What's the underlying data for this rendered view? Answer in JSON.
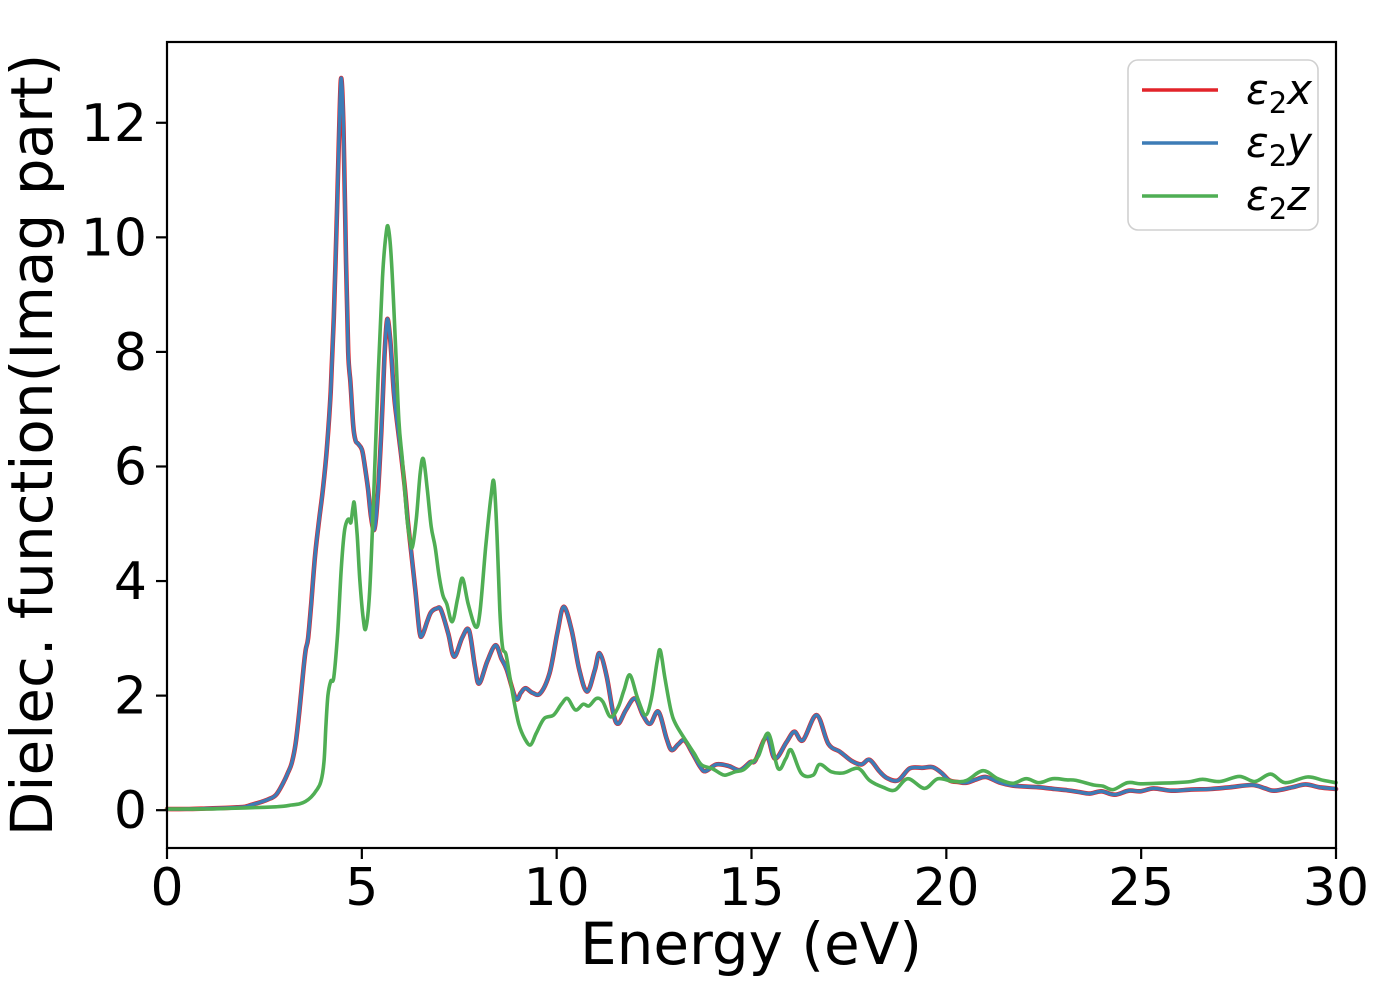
{
  "chart_data": {
    "type": "line",
    "title": "",
    "xlabel": "Energy (eV)",
    "ylabel": "Dielec. function(Imag part)",
    "xlim": [
      0,
      30
    ],
    "ylim": [
      -0.66,
      13.41
    ],
    "x_ticks": [
      "0",
      "5",
      "10",
      "15",
      "20",
      "25",
      "30"
    ],
    "x_tick_values": [
      0,
      5,
      10,
      15,
      20,
      25,
      30
    ],
    "y_ticks": [
      "0",
      "2",
      "4",
      "6",
      "8",
      "10",
      "12"
    ],
    "y_tick_values": [
      0,
      2,
      4,
      6,
      8,
      10,
      12
    ],
    "grid": false,
    "background": "#ffffff",
    "axis_color": "#000000",
    "legend_position": "upper right",
    "legend": {
      "entries": [
        {
          "series": "e2x",
          "symbol": "ε",
          "sub": "2",
          "var": "x"
        },
        {
          "series": "e2y",
          "symbol": "ε",
          "sub": "2",
          "var": "y"
        },
        {
          "series": "e2z",
          "symbol": "ε",
          "sub": "2",
          "var": "z"
        }
      ]
    },
    "series": [
      {
        "name": "e2x",
        "color": "#e2242a",
        "points": "ref:e2y"
      },
      {
        "name": "e2y",
        "color": "#3d7cb6",
        "points": [
          [
            0,
            0.02
          ],
          [
            0.5,
            0.02
          ],
          [
            1,
            0.03
          ],
          [
            1.5,
            0.04
          ],
          [
            1.8,
            0.05
          ],
          [
            2,
            0.06
          ],
          [
            2.2,
            0.1
          ],
          [
            2.4,
            0.14
          ],
          [
            2.6,
            0.19
          ],
          [
            2.8,
            0.27
          ],
          [
            3,
            0.5
          ],
          [
            3.1,
            0.65
          ],
          [
            3.2,
            0.82
          ],
          [
            3.3,
            1.16
          ],
          [
            3.4,
            1.75
          ],
          [
            3.5,
            2.45
          ],
          [
            3.56,
            2.8
          ],
          [
            3.62,
            3
          ],
          [
            3.7,
            3.6
          ],
          [
            3.8,
            4.45
          ],
          [
            3.9,
            5.05
          ],
          [
            4,
            5.6
          ],
          [
            4.1,
            6.3
          ],
          [
            4.2,
            7.3
          ],
          [
            4.28,
            8.6
          ],
          [
            4.36,
            10.4
          ],
          [
            4.42,
            11.9
          ],
          [
            4.47,
            12.78
          ],
          [
            4.53,
            11.9
          ],
          [
            4.59,
            9.7
          ],
          [
            4.65,
            8
          ],
          [
            4.71,
            7.45
          ],
          [
            4.78,
            6.7
          ],
          [
            4.84,
            6.45
          ],
          [
            4.9,
            6.4
          ],
          [
            5,
            6.3
          ],
          [
            5.06,
            6.08
          ],
          [
            5.16,
            5.6
          ],
          [
            5.24,
            5.1
          ],
          [
            5.32,
            4.9
          ],
          [
            5.4,
            5.4
          ],
          [
            5.5,
            6.6
          ],
          [
            5.58,
            7.9
          ],
          [
            5.65,
            8.57
          ],
          [
            5.73,
            8.2
          ],
          [
            5.82,
            7.3
          ],
          [
            5.9,
            6.8
          ],
          [
            6,
            6.25
          ],
          [
            6.1,
            5.65
          ],
          [
            6.18,
            5.05
          ],
          [
            6.26,
            4.55
          ],
          [
            6.38,
            3.8
          ],
          [
            6.48,
            3.12
          ],
          [
            6.55,
            3.05
          ],
          [
            6.68,
            3.3
          ],
          [
            6.78,
            3.46
          ],
          [
            6.92,
            3.52
          ],
          [
            7.03,
            3.5
          ],
          [
            7.22,
            3.08
          ],
          [
            7.37,
            2.68
          ],
          [
            7.58,
            3.02
          ],
          [
            7.75,
            3.14
          ],
          [
            7.9,
            2.52
          ],
          [
            8.01,
            2.21
          ],
          [
            8.22,
            2.6
          ],
          [
            8.43,
            2.88
          ],
          [
            8.58,
            2.65
          ],
          [
            8.72,
            2.45
          ],
          [
            8.95,
            1.95
          ],
          [
            9.08,
            2.05
          ],
          [
            9.2,
            2.13
          ],
          [
            9.38,
            2.05
          ],
          [
            9.58,
            2.04
          ],
          [
            9.82,
            2.4
          ],
          [
            10.02,
            3.1
          ],
          [
            10.18,
            3.55
          ],
          [
            10.38,
            3.15
          ],
          [
            10.58,
            2.45
          ],
          [
            10.78,
            2.07
          ],
          [
            10.98,
            2.45
          ],
          [
            11.1,
            2.74
          ],
          [
            11.28,
            2.35
          ],
          [
            11.45,
            1.7
          ],
          [
            11.58,
            1.51
          ],
          [
            11.78,
            1.75
          ],
          [
            12.01,
            1.95
          ],
          [
            12.22,
            1.65
          ],
          [
            12.4,
            1.51
          ],
          [
            12.61,
            1.72
          ],
          [
            12.82,
            1.25
          ],
          [
            12.95,
            1.05
          ],
          [
            13.12,
            1.15
          ],
          [
            13.28,
            1.22
          ],
          [
            13.48,
            1
          ],
          [
            13.68,
            0.76
          ],
          [
            13.82,
            0.68
          ],
          [
            14.1,
            0.8
          ],
          [
            14.42,
            0.77
          ],
          [
            14.7,
            0.7
          ],
          [
            14.97,
            0.84
          ],
          [
            15.1,
            0.87
          ],
          [
            15.39,
            1.28
          ],
          [
            15.6,
            0.9
          ],
          [
            15.9,
            1.19
          ],
          [
            16.1,
            1.37
          ],
          [
            16.32,
            1.22
          ],
          [
            16.67,
            1.66
          ],
          [
            16.97,
            1.16
          ],
          [
            17.27,
            1.02
          ],
          [
            17.57,
            0.86
          ],
          [
            17.82,
            0.8
          ],
          [
            18.03,
            0.88
          ],
          [
            18.28,
            0.68
          ],
          [
            18.48,
            0.56
          ],
          [
            18.76,
            0.52
          ],
          [
            19.06,
            0.73
          ],
          [
            19.38,
            0.74
          ],
          [
            19.65,
            0.75
          ],
          [
            19.88,
            0.65
          ],
          [
            20.08,
            0.52
          ],
          [
            20.32,
            0.49
          ],
          [
            20.52,
            0.48
          ],
          [
            20.78,
            0.54
          ],
          [
            21.02,
            0.58
          ],
          [
            21.38,
            0.48
          ],
          [
            21.7,
            0.43
          ],
          [
            22.08,
            0.41
          ],
          [
            22.38,
            0.4
          ],
          [
            22.78,
            0.37
          ],
          [
            23.08,
            0.35
          ],
          [
            23.38,
            0.32
          ],
          [
            23.68,
            0.29
          ],
          [
            23.98,
            0.33
          ],
          [
            24.32,
            0.27
          ],
          [
            24.68,
            0.34
          ],
          [
            24.98,
            0.33
          ],
          [
            25.32,
            0.38
          ],
          [
            25.78,
            0.34
          ],
          [
            26.28,
            0.36
          ],
          [
            26.78,
            0.37
          ],
          [
            27.28,
            0.4
          ],
          [
            27.85,
            0.44
          ],
          [
            28.18,
            0.38
          ],
          [
            28.42,
            0.34
          ],
          [
            28.88,
            0.4
          ],
          [
            29.22,
            0.45
          ],
          [
            29.58,
            0.4
          ],
          [
            30,
            0.37
          ]
        ]
      },
      {
        "name": "e2z",
        "color": "#4fae54",
        "points": [
          [
            0,
            0.02
          ],
          [
            0.5,
            0.02
          ],
          [
            1,
            0.02
          ],
          [
            1.5,
            0.03
          ],
          [
            2,
            0.04
          ],
          [
            2.5,
            0.05
          ],
          [
            2.8,
            0.06
          ],
          [
            3,
            0.07
          ],
          [
            3.2,
            0.09
          ],
          [
            3.4,
            0.11
          ],
          [
            3.55,
            0.15
          ],
          [
            3.7,
            0.23
          ],
          [
            3.84,
            0.35
          ],
          [
            3.95,
            0.5
          ],
          [
            4.03,
            0.85
          ],
          [
            4.08,
            1.5
          ],
          [
            4.13,
            2
          ],
          [
            4.2,
            2.25
          ],
          [
            4.28,
            2.32
          ],
          [
            4.38,
            3.1
          ],
          [
            4.47,
            4.2
          ],
          [
            4.55,
            4.85
          ],
          [
            4.62,
            5.05
          ],
          [
            4.68,
            5.08
          ],
          [
            4.72,
            5.02
          ],
          [
            4.77,
            5.28
          ],
          [
            4.81,
            5.35
          ],
          [
            4.88,
            4.8
          ],
          [
            4.95,
            4
          ],
          [
            5.03,
            3.38
          ],
          [
            5.1,
            3.17
          ],
          [
            5.2,
            3.8
          ],
          [
            5.3,
            5.4
          ],
          [
            5.42,
            7.6
          ],
          [
            5.53,
            9.3
          ],
          [
            5.62,
            10.05
          ],
          [
            5.68,
            10.17
          ],
          [
            5.76,
            9.6
          ],
          [
            5.86,
            8.2
          ],
          [
            5.95,
            6.8
          ],
          [
            6.04,
            6.11
          ],
          [
            6.16,
            5.1
          ],
          [
            6.24,
            4.7
          ],
          [
            6.3,
            4.6
          ],
          [
            6.4,
            5.1
          ],
          [
            6.5,
            5.9
          ],
          [
            6.58,
            6.13
          ],
          [
            6.68,
            5.6
          ],
          [
            6.78,
            4.95
          ],
          [
            6.88,
            4.6
          ],
          [
            6.98,
            4.1
          ],
          [
            7.08,
            3.75
          ],
          [
            7.18,
            3.6
          ],
          [
            7.32,
            3.29
          ],
          [
            7.46,
            3.7
          ],
          [
            7.58,
            4.05
          ],
          [
            7.73,
            3.6
          ],
          [
            7.92,
            3.2
          ],
          [
            8.03,
            3.45
          ],
          [
            8.18,
            4.6
          ],
          [
            8.31,
            5.45
          ],
          [
            8.39,
            5.73
          ],
          [
            8.47,
            4.8
          ],
          [
            8.54,
            3.5
          ],
          [
            8.61,
            2.85
          ],
          [
            8.7,
            2.72
          ],
          [
            8.8,
            2.32
          ],
          [
            8.9,
            1.92
          ],
          [
            9.03,
            1.5
          ],
          [
            9.18,
            1.25
          ],
          [
            9.33,
            1.14
          ],
          [
            9.48,
            1.35
          ],
          [
            9.68,
            1.6
          ],
          [
            9.92,
            1.66
          ],
          [
            10.12,
            1.85
          ],
          [
            10.28,
            1.95
          ],
          [
            10.48,
            1.75
          ],
          [
            10.68,
            1.85
          ],
          [
            10.83,
            1.82
          ],
          [
            11.02,
            1.95
          ],
          [
            11.18,
            1.9
          ],
          [
            11.38,
            1.63
          ],
          [
            11.58,
            1.8
          ],
          [
            11.73,
            2.1
          ],
          [
            11.88,
            2.36
          ],
          [
            12.08,
            1.95
          ],
          [
            12.28,
            1.66
          ],
          [
            12.43,
            1.95
          ],
          [
            12.58,
            2.6
          ],
          [
            12.66,
            2.79
          ],
          [
            12.78,
            2.3
          ],
          [
            12.93,
            1.75
          ],
          [
            13.05,
            1.51
          ],
          [
            13.28,
            1.25
          ],
          [
            13.52,
            1
          ],
          [
            13.72,
            0.79
          ],
          [
            13.98,
            0.73
          ],
          [
            14.18,
            0.65
          ],
          [
            14.32,
            0.61
          ],
          [
            14.58,
            0.67
          ],
          [
            14.78,
            0.7
          ],
          [
            14.98,
            0.82
          ],
          [
            15.18,
            0.95
          ],
          [
            15.43,
            1.34
          ],
          [
            15.68,
            0.73
          ],
          [
            15.88,
            0.9
          ],
          [
            16.02,
            1.05
          ],
          [
            16.28,
            0.64
          ],
          [
            16.58,
            0.61
          ],
          [
            16.75,
            0.8
          ],
          [
            17.05,
            0.67
          ],
          [
            17.35,
            0.65
          ],
          [
            17.74,
            0.73
          ],
          [
            18.03,
            0.52
          ],
          [
            18.38,
            0.4
          ],
          [
            18.68,
            0.35
          ],
          [
            19.01,
            0.55
          ],
          [
            19.44,
            0.38
          ],
          [
            19.78,
            0.55
          ],
          [
            20.18,
            0.5
          ],
          [
            20.52,
            0.52
          ],
          [
            20.94,
            0.69
          ],
          [
            21.32,
            0.55
          ],
          [
            21.7,
            0.47
          ],
          [
            22.05,
            0.55
          ],
          [
            22.38,
            0.48
          ],
          [
            22.73,
            0.55
          ],
          [
            23.08,
            0.53
          ],
          [
            23.33,
            0.52
          ],
          [
            23.78,
            0.44
          ],
          [
            24.02,
            0.42
          ],
          [
            24.28,
            0.36
          ],
          [
            24.65,
            0.48
          ],
          [
            24.98,
            0.46
          ],
          [
            25.38,
            0.47
          ],
          [
            25.88,
            0.48
          ],
          [
            26.28,
            0.5
          ],
          [
            26.58,
            0.54
          ],
          [
            27.02,
            0.5
          ],
          [
            27.52,
            0.59
          ],
          [
            27.92,
            0.5
          ],
          [
            28.32,
            0.63
          ],
          [
            28.7,
            0.48
          ],
          [
            29.26,
            0.58
          ],
          [
            29.68,
            0.52
          ],
          [
            30,
            0.48
          ]
        ]
      }
    ]
  }
}
